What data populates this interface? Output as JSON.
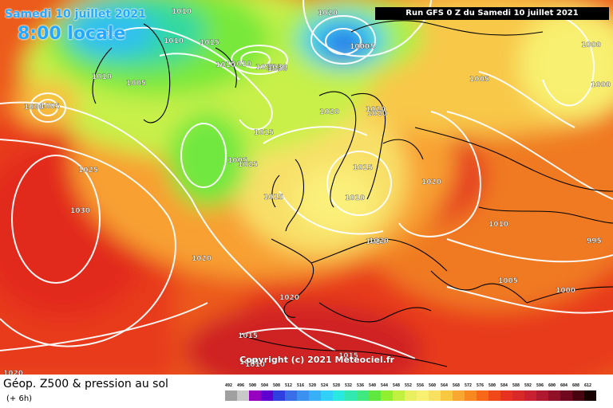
{
  "header": {
    "date": "Samedi 10 juillet 2021",
    "time": "8:00 locale",
    "run": "Run GFS 0 Z du Samedi 10 juillet 2021"
  },
  "copyright": "Copyright (c) 2021 Meteociel.fr",
  "legend": {
    "title": "Géop. Z500 & pression au sol",
    "subtitle": "(+ 6h)",
    "scale": [
      {
        "v": "492",
        "c": "#a0a0a0"
      },
      {
        "v": "496",
        "c": "#c8c8c8"
      },
      {
        "v": "500",
        "c": "#9800c0"
      },
      {
        "v": "504",
        "c": "#6000d0"
      },
      {
        "v": "508",
        "c": "#3040e0"
      },
      {
        "v": "512",
        "c": "#3a6ee8"
      },
      {
        "v": "516",
        "c": "#3c90f0"
      },
      {
        "v": "520",
        "c": "#38b0f8"
      },
      {
        "v": "524",
        "c": "#30d0f8"
      },
      {
        "v": "528",
        "c": "#28e8e0"
      },
      {
        "v": "532",
        "c": "#30e8b0"
      },
      {
        "v": "536",
        "c": "#40e880"
      },
      {
        "v": "540",
        "c": "#60e840"
      },
      {
        "v": "544",
        "c": "#90f030"
      },
      {
        "v": "548",
        "c": "#c0f040"
      },
      {
        "v": "552",
        "c": "#e8f060"
      },
      {
        "v": "556",
        "c": "#f8f070"
      },
      {
        "v": "560",
        "c": "#f8e060"
      },
      {
        "v": "564",
        "c": "#f8c840"
      },
      {
        "v": "568",
        "c": "#f8a830"
      },
      {
        "v": "572",
        "c": "#f88820"
      },
      {
        "v": "576",
        "c": "#f86818"
      },
      {
        "v": "580",
        "c": "#f04818"
      },
      {
        "v": "584",
        "c": "#e83020"
      },
      {
        "v": "588",
        "c": "#d82828"
      },
      {
        "v": "592",
        "c": "#c82030"
      },
      {
        "v": "596",
        "c": "#b01830"
      },
      {
        "v": "600",
        "c": "#901028"
      },
      {
        "v": "604",
        "c": "#700820"
      },
      {
        "v": "608",
        "c": "#480410"
      },
      {
        "v": "612",
        "c": "#180000"
      }
    ]
  },
  "isobar_labels": [
    "1010",
    "1015",
    "1010",
    "1015",
    "1010",
    "1005",
    "1025",
    "1020",
    "1000",
    "1005",
    "1030",
    "1025",
    "1010",
    "1005",
    "1030",
    "1020",
    "1015",
    "1020",
    "1000",
    "1015",
    "1010",
    "1020",
    "1025",
    "1020",
    "1010",
    "995",
    "1015",
    "1030",
    "1020",
    "1020",
    "1015",
    "1000",
    "1005",
    "1010",
    "1020",
    "1005",
    "1000",
    "1005",
    "1015",
    "1020",
    "1000",
    "1015",
    "1010",
    "1020"
  ]
}
